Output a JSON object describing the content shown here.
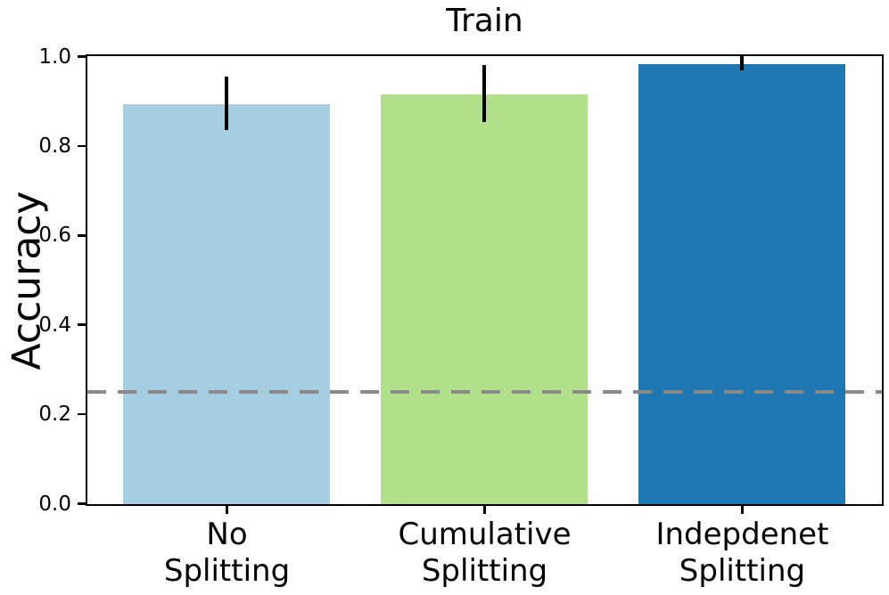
{
  "figure": {
    "background_color": "#ffffff"
  },
  "chart_data": {
    "type": "bar",
    "title": "Train",
    "xlabel": "",
    "ylabel": "Accuracy",
    "categories": [
      "No\nSplitting",
      "Cumulative\nSplitting",
      "Indepdenet\nSplitting"
    ],
    "values": [
      0.895,
      0.917,
      0.985
    ],
    "errors": [
      0.06,
      0.064,
      0.016
    ],
    "bar_colors": [
      "#a6cee3",
      "#b2df8a",
      "#1f78b4"
    ],
    "error_bar_color": "#000000",
    "reference_line": {
      "value": 0.25,
      "color": "#8a8a8a",
      "style": "dashed"
    },
    "ylim": [
      0.0,
      1.0
    ],
    "ytick_values": [
      0.0,
      0.2,
      0.4,
      0.6,
      0.8,
      1.0
    ],
    "ytick_labels": [
      "0.0",
      "0.2",
      "0.4",
      "0.6",
      "0.8",
      "1.0"
    ],
    "bar_width_fraction": 0.8,
    "grid": false,
    "legend_position": "none",
    "spine_color": "#000000"
  }
}
